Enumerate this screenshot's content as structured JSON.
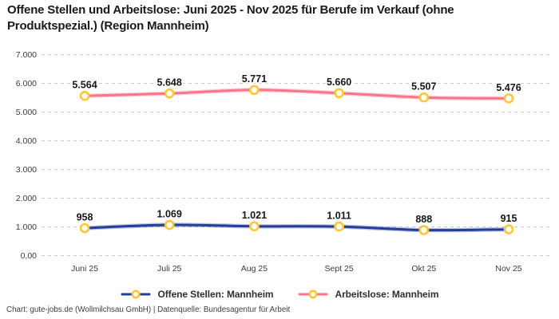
{
  "chart_data": {
    "type": "line",
    "title": "Offene Stellen und Arbeitslose: Juni 2025 - Nov 2025 für Berufe im Verkauf (ohne Produktspezial.) (Region Mannheim)",
    "title_lines": [
      "Offene Stellen und Arbeitslose: Juni 2025 - Nov 2025 für Berufe im Verkauf (ohne",
      "Produktspezial.) (Region Mannheim)"
    ],
    "categories": [
      "Juni 25",
      "Juli 25",
      "Aug 25",
      "Sept 25",
      "Okt 25",
      "Nov 25"
    ],
    "series": [
      {
        "name": "Offene Stellen: Mannheim",
        "color": "#243E9B",
        "values": [
          958,
          1069,
          1021,
          1011,
          888,
          915
        ],
        "value_labels": [
          "958",
          "1.069",
          "1.021",
          "1.011",
          "888",
          "915"
        ]
      },
      {
        "name": "Arbeitslose: Mannheim",
        "color": "#F9758B",
        "values": [
          5564,
          5648,
          5771,
          5660,
          5507,
          5476
        ],
        "value_labels": [
          "5.564",
          "5.648",
          "5.771",
          "5.660",
          "5.507",
          "5.476"
        ]
      }
    ],
    "yticks": [
      {
        "value": 0,
        "label": "0,00"
      },
      {
        "value": 1000,
        "label": "1.000"
      },
      {
        "value": 2000,
        "label": "2.000"
      },
      {
        "value": 3000,
        "label": "3.000"
      },
      {
        "value": 4000,
        "label": "4.000"
      },
      {
        "value": 5000,
        "label": "5.000"
      },
      {
        "value": 6000,
        "label": "6.000"
      },
      {
        "value": 7000,
        "label": "7.000"
      }
    ],
    "ylim": [
      0,
      7000
    ],
    "grid": "horizontal-dashed",
    "legend_position": "bottom",
    "colors": {
      "marker_ring": "#FFC72F",
      "marker_fill": "#FFFFFF",
      "gridline": "#CBCBCB",
      "axis_label": "#3A3A3A",
      "data_label": "#161616",
      "title": "#1A1A1A"
    }
  },
  "footer": {
    "text": "Chart: gute-jobs.de (Wollmilchsau GmbH) | Datenquelle: Bundesagentur für Arbeit"
  }
}
